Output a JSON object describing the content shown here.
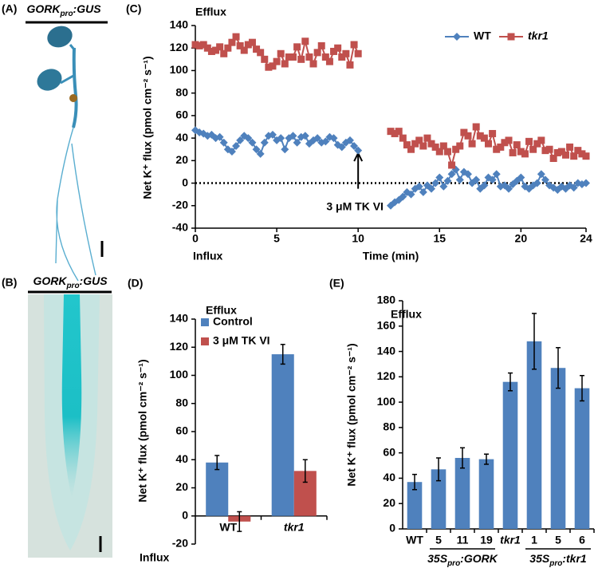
{
  "panel_a": {
    "label": "(A)",
    "title": {
      "gene": "GORK",
      "sub": "pro",
      "suffix": ":GUS"
    }
  },
  "panel_b": {
    "label": "(B)",
    "title": {
      "gene": "GORK",
      "sub": "pro",
      "suffix": ":GUS"
    }
  },
  "chart_data": [
    {
      "type": "line",
      "label": "(C)",
      "efflux": "Efflux",
      "influx": "Influx",
      "x_label": "Time (min)",
      "y_label": "Net K⁺ flux (pmol cm⁻² s⁻¹)",
      "x": [
        0,
        0.25,
        0.5,
        0.75,
        1,
        1.25,
        1.5,
        1.75,
        2,
        2.25,
        2.5,
        2.75,
        3,
        3.25,
        3.5,
        3.75,
        4,
        4.25,
        4.5,
        4.75,
        5,
        5.25,
        5.5,
        5.75,
        6,
        6.25,
        6.5,
        6.75,
        7,
        7.25,
        7.5,
        7.75,
        8,
        8.25,
        8.5,
        8.75,
        9,
        9.25,
        9.5,
        9.75,
        10,
        11,
        12,
        12.25,
        12.5,
        12.75,
        13,
        13.25,
        13.5,
        13.75,
        14,
        14.25,
        14.5,
        14.75,
        15,
        15.25,
        15.5,
        15.75,
        16,
        16.25,
        16.5,
        16.75,
        17,
        17.25,
        17.5,
        17.75,
        18,
        18.25,
        18.5,
        18.75,
        19,
        19.25,
        19.5,
        19.75,
        20,
        20.25,
        20.5,
        20.75,
        21,
        21.25,
        21.5,
        21.75,
        22,
        22.25,
        22.5,
        22.75,
        23,
        23.25,
        23.5,
        23.75,
        24
      ],
      "series": [
        {
          "name": "WT",
          "color": "#4f81bd",
          "marker": "diamond",
          "values": [
            47,
            45,
            44,
            42,
            43,
            40,
            41,
            36,
            30,
            28,
            33,
            38,
            42,
            40,
            36,
            30,
            26,
            36,
            42,
            43,
            38,
            40,
            30,
            40,
            42,
            36,
            41,
            42,
            35,
            38,
            40,
            36,
            37,
            41,
            40,
            34,
            32,
            36,
            38,
            33,
            29,
            null,
            -20,
            -17,
            -15,
            -12,
            -8,
            -10,
            -5,
            -3,
            -8,
            -2,
            -5,
            0,
            5,
            -3,
            2,
            8,
            12,
            3,
            10,
            8,
            0,
            3,
            -5,
            -2,
            5,
            3,
            8,
            -3,
            -2,
            -5,
            -1,
            2,
            5,
            -3,
            -5,
            -2,
            0,
            8,
            3,
            -2,
            -4,
            -6,
            -3,
            -5,
            -2,
            -4,
            0,
            -1,
            0
          ]
        },
        {
          "name": "tkr1",
          "color": "#c0504d",
          "marker": "square",
          "values": [
            123,
            122,
            123,
            120,
            117,
            118,
            121,
            115,
            120,
            125,
            130,
            122,
            118,
            123,
            125,
            119,
            116,
            110,
            103,
            104,
            108,
            115,
            106,
            112,
            112,
            121,
            110,
            126,
            112,
            106,
            116,
            122,
            112,
            108,
            117,
            120,
            112,
            115,
            105,
            123,
            115,
            null,
            46,
            44,
            46,
            40,
            34,
            30,
            35,
            38,
            33,
            40,
            35,
            32,
            28,
            33,
            28,
            16,
            30,
            33,
            45,
            42,
            35,
            50,
            42,
            40,
            35,
            44,
            30,
            32,
            36,
            38,
            27,
            34,
            28,
            26,
            37,
            30,
            35,
            38,
            29,
            30,
            22,
            27,
            28,
            25,
            32,
            24,
            29,
            26,
            24
          ]
        }
      ],
      "xlim": [
        0,
        24
      ],
      "xticks": [
        0,
        5,
        10,
        15,
        20,
        24
      ],
      "ylim": [
        -40,
        140
      ],
      "yticks": [
        -40,
        -20,
        0,
        20,
        40,
        60,
        80,
        100,
        120,
        140
      ],
      "zero_line": "dotted",
      "annotation": {
        "text": "3 μM TK VI",
        "x": 10
      },
      "legend": "top right"
    },
    {
      "type": "bar",
      "label": "(D)",
      "efflux": "Efflux",
      "influx": "Influx",
      "y_label": "Net K⁺ flux (pmol cm⁻² s⁻¹)",
      "categories": [
        "WT",
        "tkr1"
      ],
      "series": [
        {
          "name": "Control",
          "color": "#4f81bd",
          "values": [
            38,
            115
          ],
          "errors": [
            5,
            7
          ]
        },
        {
          "name": "3 μM TK VI",
          "color": "#c0504d",
          "values": [
            -4,
            32
          ],
          "errors": [
            7,
            8
          ]
        }
      ],
      "ylim": [
        -20,
        140
      ],
      "yticks": [
        -20,
        0,
        20,
        40,
        60,
        80,
        100,
        120,
        140
      ],
      "legend": "top left"
    },
    {
      "type": "bar",
      "label": "(E)",
      "efflux": "Efflux",
      "y_label": "Net K⁺ flux (pmol cm⁻² s⁻¹)",
      "categories": [
        "WT",
        "5",
        "11",
        "19",
        "tkr1",
        "1",
        "5",
        "6"
      ],
      "values": [
        37,
        47,
        56,
        55,
        116,
        148,
        127,
        111
      ],
      "errors": [
        6,
        9,
        8,
        4,
        7,
        22,
        16,
        10
      ],
      "color": "#4f81bd",
      "groups": [
        {
          "prefix": "35S",
          "sub": "pro",
          "suffix": ":GORK"
        },
        {
          "prefix": "35S",
          "sub": "pro",
          "suffix": ":tkr1"
        }
      ],
      "ylim": [
        0,
        180
      ],
      "yticks": [
        0,
        20,
        40,
        60,
        80,
        100,
        120,
        140,
        160,
        180
      ]
    }
  ]
}
